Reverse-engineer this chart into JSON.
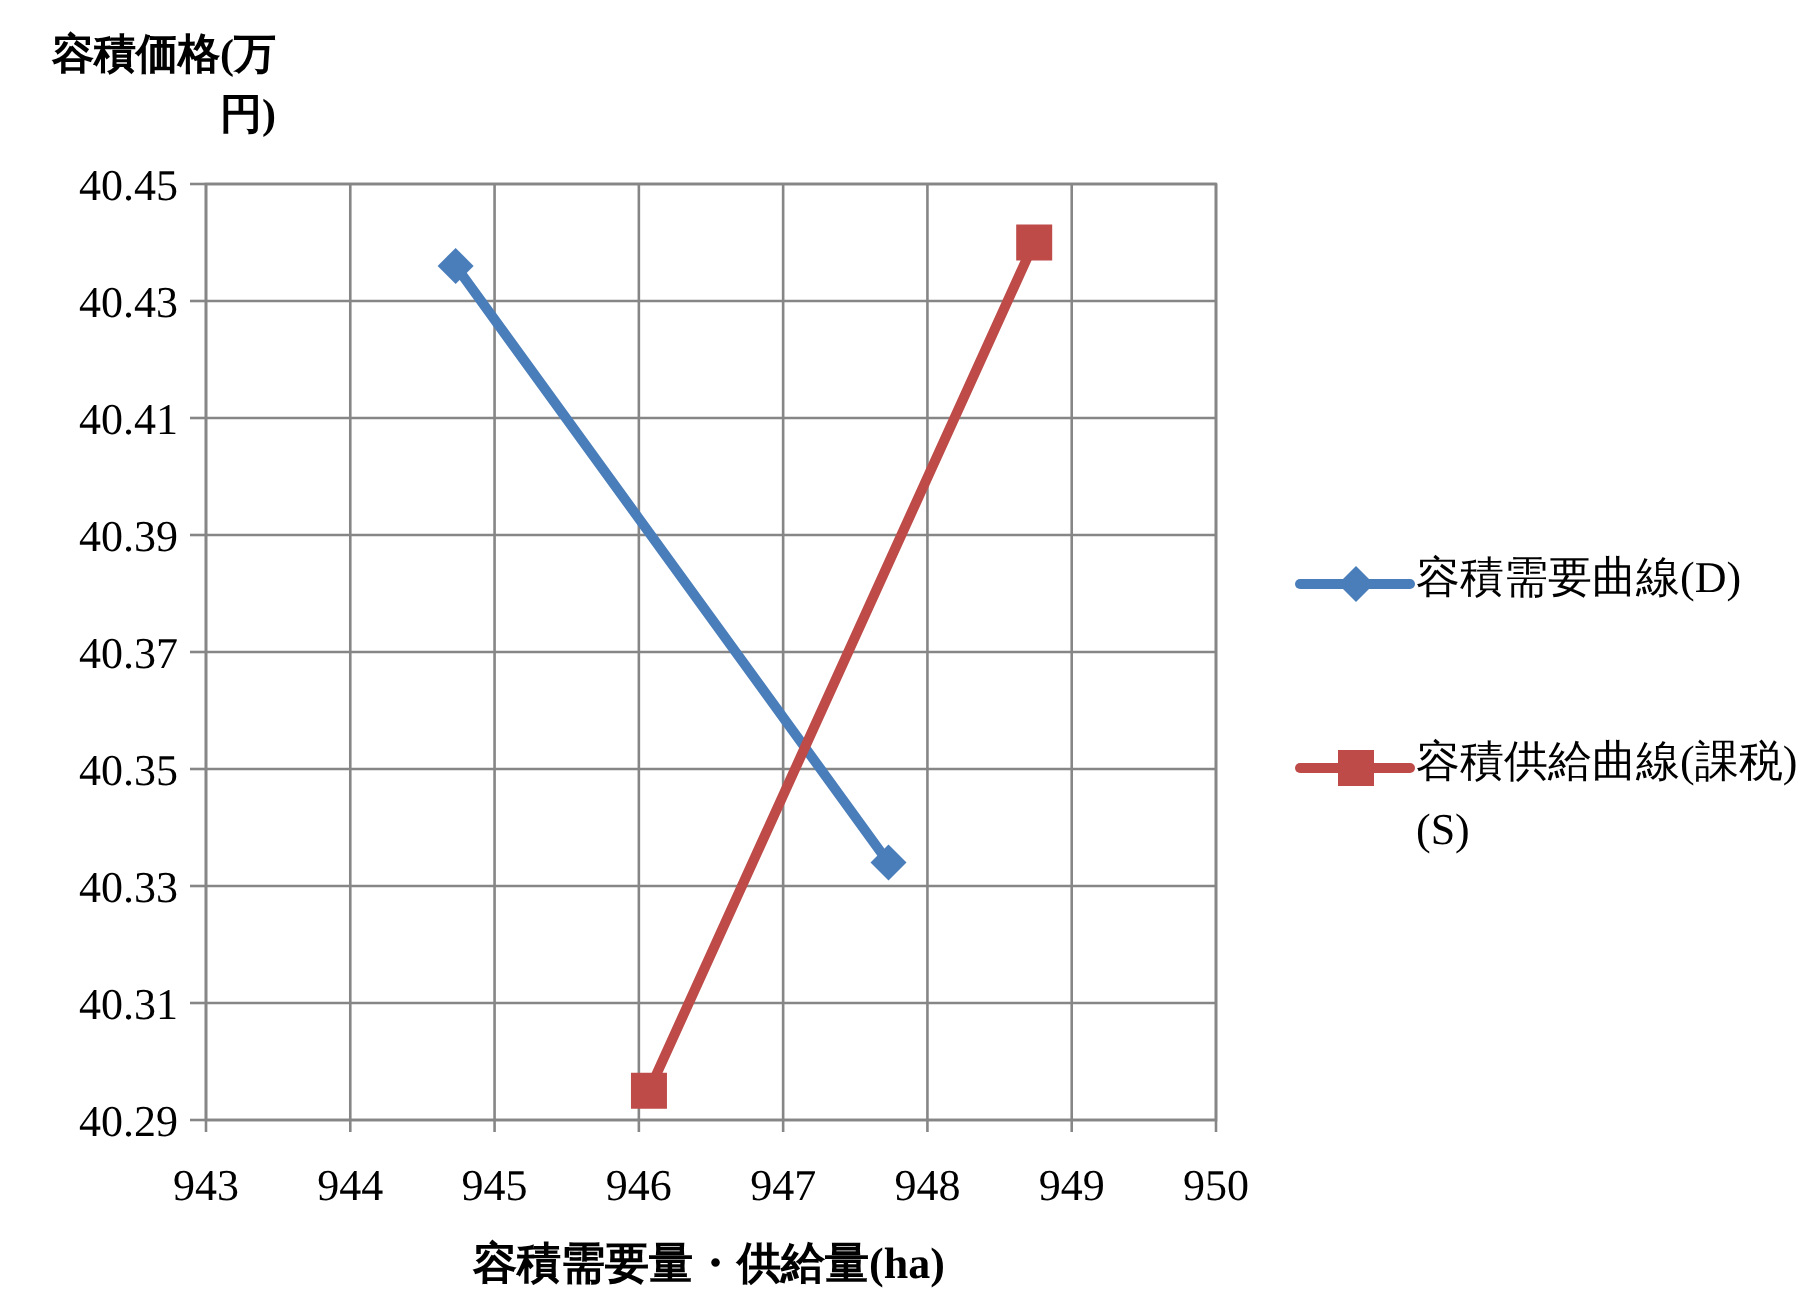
{
  "chart_data": {
    "type": "line",
    "xlabel": "容積需要量・供給量(ha)",
    "ylabel": "容積価格(万円)",
    "xlim": [
      943,
      950
    ],
    "xticks": [
      943,
      944,
      945,
      946,
      947,
      948,
      949,
      950
    ],
    "ylim": [
      40.29,
      40.45
    ],
    "yticks": [
      40.29,
      40.31,
      40.33,
      40.35,
      40.37,
      40.39,
      40.41,
      40.43,
      40.45
    ],
    "grid": true,
    "legend": "right",
    "line_style": "solid",
    "series": [
      {
        "name": "容積需要曲線(D)",
        "color": "#4a7ebb",
        "marker": "diamond",
        "x": [
          944.73,
          947.73
        ],
        "values": [
          40.436,
          40.334
        ]
      },
      {
        "name": "容積供給曲線(課税)(S)",
        "color": "#be4b48",
        "marker": "square",
        "x": [
          946.07,
          948.74
        ],
        "values": [
          40.295,
          40.44
        ]
      }
    ]
  }
}
